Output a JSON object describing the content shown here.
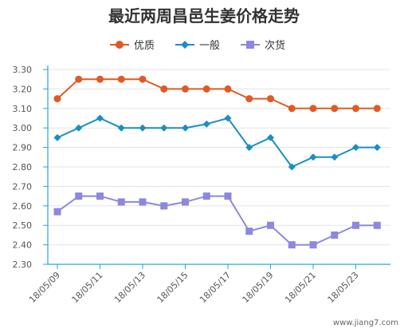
{
  "chart_data": {
    "type": "line",
    "title": "最近两周昌邑生姜价格走势",
    "categories": [
      "18/05/09",
      "18/05/10",
      "18/05/11",
      "18/05/12",
      "18/05/13",
      "18/05/14",
      "18/05/15",
      "18/05/16",
      "18/05/17",
      "18/05/18",
      "18/05/19",
      "18/05/20",
      "18/05/21",
      "18/05/22",
      "18/05/23",
      "18/05/24"
    ],
    "x_tick_labels": [
      "18/05/09",
      "18/05/11",
      "18/05/13",
      "18/05/15",
      "18/05/17",
      "18/05/19",
      "18/05/21",
      "18/05/23"
    ],
    "ylim": [
      2.3,
      3.3
    ],
    "y_tick_labels": [
      "3.30",
      "3.20",
      "3.10",
      "3.00",
      "2.90",
      "2.80",
      "2.70",
      "2.60",
      "2.50",
      "2.40",
      "2.30"
    ],
    "grid": true,
    "legend_position": "top",
    "series": [
      {
        "name": "优质",
        "color": "#e05a24",
        "marker": "circle",
        "values": [
          3.15,
          3.25,
          3.25,
          3.25,
          3.25,
          3.2,
          3.2,
          3.2,
          3.2,
          3.15,
          3.15,
          3.1,
          3.1,
          3.1,
          3.1,
          3.1
        ]
      },
      {
        "name": "一般",
        "color": "#1a8ec4",
        "marker": "diamond",
        "values": [
          2.95,
          3.0,
          3.05,
          3.0,
          3.0,
          3.0,
          3.0,
          3.02,
          3.05,
          2.9,
          2.95,
          2.8,
          2.85,
          2.85,
          2.9,
          2.9
        ]
      },
      {
        "name": "次货",
        "color": "#8c87e0",
        "marker": "square",
        "values": [
          2.57,
          2.65,
          2.65,
          2.62,
          2.62,
          2.6,
          2.62,
          2.65,
          2.65,
          2.47,
          2.5,
          2.4,
          2.4,
          2.45,
          2.5,
          2.5
        ]
      }
    ]
  },
  "watermark": "www.jiang7.com"
}
